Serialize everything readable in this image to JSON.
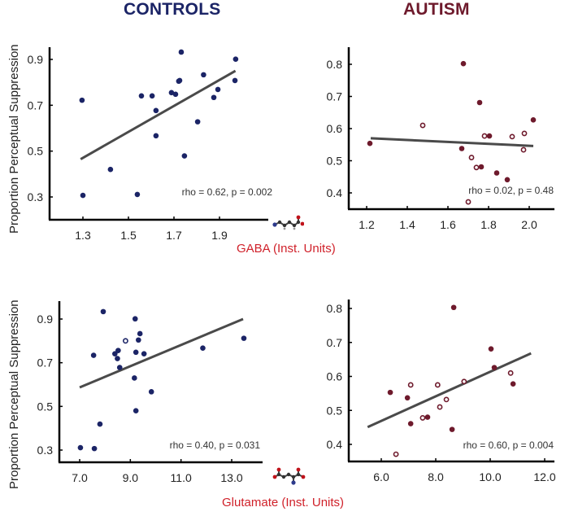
{
  "titles": {
    "controls": "CONTROLS",
    "autism": "AUTISM"
  },
  "labels": {
    "ylabel": "Proportion Perceptual Suppression",
    "gaba_xlabel": "GABA (Inst. Units)",
    "glutamate_xlabel": "Glutamate (Inst. Units)"
  },
  "icons": {
    "gaba": "gaba-molecule-icon",
    "glutamate": "glutamate-molecule-icon"
  },
  "colors": {
    "controls": "#1b2466",
    "autism": "#6e1a2c",
    "fit_line": "#4a4a4a",
    "xlabel": "#d0212a"
  },
  "chart_data": [
    {
      "id": "controls-gaba",
      "type": "scatter",
      "group": "CONTROLS",
      "xlabel": "GABA (Inst. Units)",
      "ylabel": "Proportion Perceptual Suppression",
      "xlim": [
        1.2,
        2.05
      ],
      "ylim": [
        0.25,
        0.97
      ],
      "xticks": [
        1.3,
        1.5,
        1.7,
        1.9
      ],
      "xtick_labels": [
        "1.3",
        "1.5",
        "1.7",
        "1.9"
      ],
      "yticks": [
        0.3,
        0.5,
        0.7,
        0.9
      ],
      "ytick_labels": [
        "0.3",
        "0.5",
        "0.7",
        "0.9"
      ],
      "color": "#1b2466",
      "annotation": "rho = 0.62, p = 0.002",
      "fit_line": {
        "x": [
          1.29,
          1.97
        ],
        "y": [
          0.465,
          0.85
        ]
      },
      "points": [
        {
          "x": 1.296,
          "y": 0.722,
          "filled": true
        },
        {
          "x": 1.3,
          "y": 0.307,
          "filled": true
        },
        {
          "x": 1.421,
          "y": 0.42,
          "filled": true
        },
        {
          "x": 1.539,
          "y": 0.311,
          "filled": true
        },
        {
          "x": 1.557,
          "y": 0.741,
          "filled": true
        },
        {
          "x": 1.604,
          "y": 0.741,
          "filled": true
        },
        {
          "x": 1.621,
          "y": 0.677,
          "filled": true
        },
        {
          "x": 1.621,
          "y": 0.567,
          "filled": true
        },
        {
          "x": 1.689,
          "y": 0.755,
          "filled": true
        },
        {
          "x": 1.707,
          "y": 0.748,
          "filled": true
        },
        {
          "x": 1.721,
          "y": 0.805,
          "filled": true
        },
        {
          "x": 1.725,
          "y": 0.808,
          "filled": true
        },
        {
          "x": 1.732,
          "y": 0.932,
          "filled": true
        },
        {
          "x": 1.746,
          "y": 0.479,
          "filled": true
        },
        {
          "x": 1.804,
          "y": 0.628,
          "filled": true
        },
        {
          "x": 1.83,
          "y": 0.833,
          "filled": true
        },
        {
          "x": 1.875,
          "y": 0.734,
          "filled": true
        },
        {
          "x": 1.893,
          "y": 0.769,
          "filled": true
        },
        {
          "x": 1.968,
          "y": 0.808,
          "filled": true
        },
        {
          "x": 1.971,
          "y": 0.901,
          "filled": true
        }
      ]
    },
    {
      "id": "autism-gaba",
      "type": "scatter",
      "group": "AUTISM",
      "xlabel": "GABA (Inst. Units)",
      "ylabel": "",
      "xlim": [
        1.1,
        2.12
      ],
      "ylim": [
        0.35,
        0.85
      ],
      "xticks": [
        1.2,
        1.4,
        1.6,
        1.8,
        2.0
      ],
      "xtick_labels": [
        "1.2",
        "1.4",
        "1.6",
        "1.8",
        "2.0"
      ],
      "yticks": [
        0.4,
        0.5,
        0.6,
        0.7,
        0.8
      ],
      "ytick_labels": [
        "0.4",
        "0.5",
        "0.6",
        "0.7",
        "0.8"
      ],
      "color": "#6e1a2c",
      "annotation": "rho = 0.02, p = 0.48",
      "fit_line": {
        "x": [
          1.22,
          2.02
        ],
        "y": [
          0.57,
          0.546
        ]
      },
      "points": [
        {
          "x": 1.216,
          "y": 0.554,
          "filled": true
        },
        {
          "x": 1.476,
          "y": 0.61,
          "filled": false
        },
        {
          "x": 1.668,
          "y": 0.538,
          "filled": true
        },
        {
          "x": 1.676,
          "y": 0.802,
          "filled": true
        },
        {
          "x": 1.7,
          "y": 0.372,
          "filled": false
        },
        {
          "x": 1.716,
          "y": 0.51,
          "filled": false
        },
        {
          "x": 1.74,
          "y": 0.479,
          "filled": false
        },
        {
          "x": 1.764,
          "y": 0.481,
          "filled": true
        },
        {
          "x": 1.756,
          "y": 0.681,
          "filled": true
        },
        {
          "x": 1.78,
          "y": 0.577,
          "filled": false
        },
        {
          "x": 1.804,
          "y": 0.577,
          "filled": true
        },
        {
          "x": 1.84,
          "y": 0.462,
          "filled": true
        },
        {
          "x": 1.892,
          "y": 0.441,
          "filled": true
        },
        {
          "x": 1.916,
          "y": 0.575,
          "filled": false
        },
        {
          "x": 1.972,
          "y": 0.534,
          "filled": false
        },
        {
          "x": 1.976,
          "y": 0.585,
          "filled": false
        },
        {
          "x": 2.02,
          "y": 0.627,
          "filled": true
        }
      ]
    },
    {
      "id": "controls-glutamate",
      "type": "scatter",
      "group": "CONTROLS",
      "xlabel": "Glutamate (Inst. Units)",
      "ylabel": "Proportion Perceptual Suppression",
      "xlim": [
        6.4,
        14.2
      ],
      "ylim": [
        0.27,
        0.98
      ],
      "xticks": [
        7.0,
        9.0,
        11.0,
        13.0
      ],
      "xtick_labels": [
        "7.0",
        "9.0",
        "11.0",
        "13.0"
      ],
      "yticks": [
        0.3,
        0.5,
        0.7,
        0.9
      ],
      "ytick_labels": [
        "0.3",
        "0.5",
        "0.7",
        "0.9"
      ],
      "color": "#1b2466",
      "annotation": "rho = 0.40, p = 0.031",
      "fit_line": {
        "x": [
          7.0,
          13.45
        ],
        "y": [
          0.587,
          0.9
        ]
      },
      "points": [
        {
          "x": 7.03,
          "y": 0.311,
          "filled": true
        },
        {
          "x": 7.58,
          "y": 0.307,
          "filled": true
        },
        {
          "x": 7.55,
          "y": 0.734,
          "filled": true
        },
        {
          "x": 7.8,
          "y": 0.419,
          "filled": true
        },
        {
          "x": 7.93,
          "y": 0.934,
          "filled": true
        },
        {
          "x": 8.39,
          "y": 0.741,
          "filled": true
        },
        {
          "x": 8.49,
          "y": 0.719,
          "filled": true
        },
        {
          "x": 8.52,
          "y": 0.756,
          "filled": true
        },
        {
          "x": 8.58,
          "y": 0.678,
          "filled": true
        },
        {
          "x": 8.81,
          "y": 0.8,
          "filled": false
        },
        {
          "x": 9.16,
          "y": 0.63,
          "filled": true
        },
        {
          "x": 9.19,
          "y": 0.901,
          "filled": true
        },
        {
          "x": 9.22,
          "y": 0.748,
          "filled": true
        },
        {
          "x": 9.22,
          "y": 0.48,
          "filled": true
        },
        {
          "x": 9.32,
          "y": 0.804,
          "filled": true
        },
        {
          "x": 9.38,
          "y": 0.833,
          "filled": true
        },
        {
          "x": 9.54,
          "y": 0.741,
          "filled": true
        },
        {
          "x": 9.83,
          "y": 0.567,
          "filled": true
        },
        {
          "x": 11.86,
          "y": 0.767,
          "filled": true
        },
        {
          "x": 13.48,
          "y": 0.812,
          "filled": true
        }
      ]
    },
    {
      "id": "autism-glutamate",
      "type": "scatter",
      "group": "AUTISM",
      "xlabel": "Glutamate (Inst. Units)",
      "ylabel": "",
      "xlim": [
        4.8,
        12.2
      ],
      "ylim": [
        0.35,
        0.83
      ],
      "xticks": [
        6.0,
        8.0,
        10.0,
        12.0
      ],
      "xtick_labels": [
        "6.0",
        "8.0",
        "10.0",
        "12.0"
      ],
      "yticks": [
        0.4,
        0.5,
        0.6,
        0.7,
        0.8
      ],
      "ytick_labels": [
        "0.4",
        "0.5",
        "0.6",
        "0.7",
        "0.8"
      ],
      "color": "#6e1a2c",
      "annotation": "rho = 0.60, p = 0.004",
      "fit_line": {
        "x": [
          5.5,
          11.5
        ],
        "y": [
          0.451,
          0.668
        ]
      },
      "points": [
        {
          "x": 6.33,
          "y": 0.553,
          "filled": true
        },
        {
          "x": 6.54,
          "y": 0.371,
          "filled": false
        },
        {
          "x": 6.96,
          "y": 0.537,
          "filled": true
        },
        {
          "x": 7.08,
          "y": 0.575,
          "filled": false
        },
        {
          "x": 7.08,
          "y": 0.461,
          "filled": true
        },
        {
          "x": 7.52,
          "y": 0.478,
          "filled": false
        },
        {
          "x": 7.7,
          "y": 0.48,
          "filled": true
        },
        {
          "x": 8.07,
          "y": 0.575,
          "filled": false
        },
        {
          "x": 8.15,
          "y": 0.51,
          "filled": false
        },
        {
          "x": 8.39,
          "y": 0.532,
          "filled": false
        },
        {
          "x": 8.6,
          "y": 0.444,
          "filled": true
        },
        {
          "x": 8.66,
          "y": 0.803,
          "filled": true
        },
        {
          "x": 9.04,
          "y": 0.585,
          "filled": false
        },
        {
          "x": 10.03,
          "y": 0.681,
          "filled": true
        },
        {
          "x": 10.15,
          "y": 0.626,
          "filled": true
        },
        {
          "x": 10.75,
          "y": 0.61,
          "filled": false
        },
        {
          "x": 10.84,
          "y": 0.578,
          "filled": true
        }
      ]
    }
  ]
}
